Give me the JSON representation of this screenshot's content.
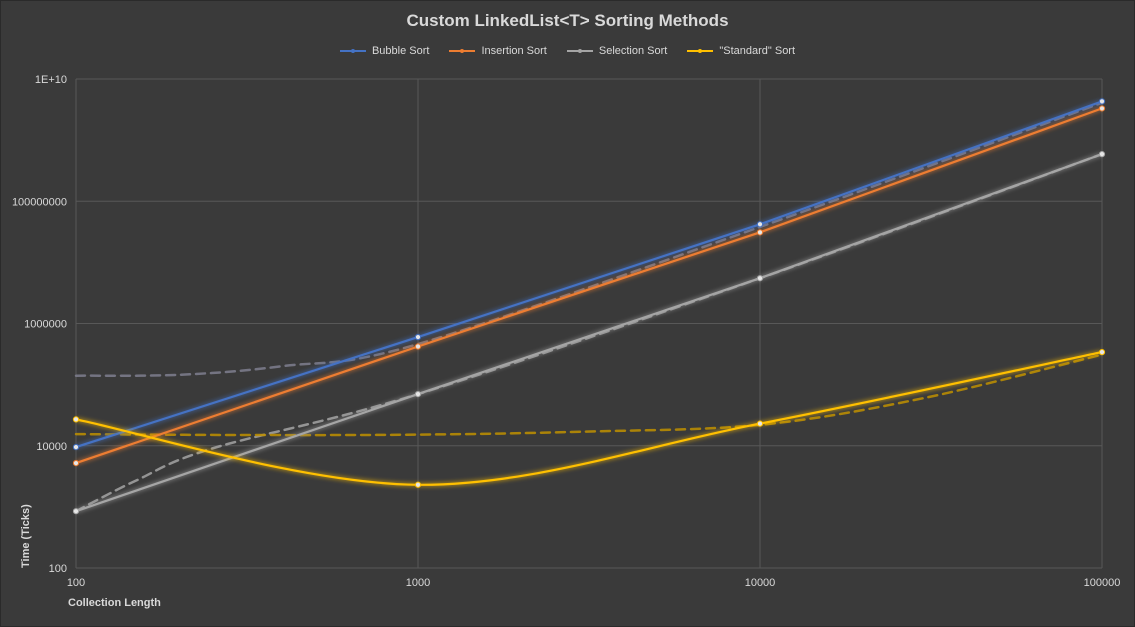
{
  "chart_data": {
    "type": "line",
    "title": "Custom LinkedList<T> Sorting Methods",
    "xlabel": "Collection Length",
    "ylabel": "Time (Ticks)",
    "x_scale": "log",
    "y_scale": "log",
    "x": [
      100,
      1000,
      10000,
      100000
    ],
    "x_tick_labels": [
      "100",
      "1000",
      "10000",
      "100000"
    ],
    "xlim": [
      100,
      100000
    ],
    "y_tick_values": [
      100,
      10000,
      1000000,
      100000000,
      10000000000
    ],
    "y_tick_labels": [
      "100",
      "10000",
      "1000000",
      "100000000",
      "1E+10"
    ],
    "ylim": [
      100,
      10000000000
    ],
    "grid": true,
    "legend_position": "top",
    "series": [
      {
        "name": "Bubble Sort",
        "color": "#4472c4",
        "values": [
          9500,
          600000,
          42000000,
          4300000000
        ]
      },
      {
        "name": "Insertion Sort",
        "color": "#ed7d31",
        "values": [
          5200,
          420000,
          31000000,
          3300000000
        ]
      },
      {
        "name": "Selection Sort",
        "color": "#a5a5a5",
        "values": [
          850,
          70000,
          5500000,
          590000000
        ]
      },
      {
        "name": "\"Standard\" Sort",
        "color": "#ffc000",
        "values": [
          27000,
          2300,
          23000,
          340000
        ]
      }
    ],
    "trendlines": [
      {
        "series": "Selection Sort",
        "style": "dashed",
        "color": "#a5a5a5",
        "x": [
          100,
          150,
          250,
          1000,
          10000,
          100000
        ],
        "values": [
          850,
          2700,
          9000,
          70000,
          5500000,
          590000000
        ]
      },
      {
        "series": "Bubble Sort",
        "style": "dashed",
        "color": "#7f7f8f",
        "x": [
          100,
          200,
          400,
          1000,
          10000,
          100000
        ],
        "values": [
          140000,
          145000,
          200000,
          460000,
          38000000,
          4100000000
        ]
      },
      {
        "series": "\"Standard\" Sort",
        "style": "dashed",
        "color": "#bf9000",
        "x": [
          100,
          300,
          1000,
          3000,
          10000,
          30000,
          100000
        ],
        "values": [
          15500,
          15000,
          15200,
          17000,
          22000,
          60000,
          310000
        ]
      }
    ]
  }
}
